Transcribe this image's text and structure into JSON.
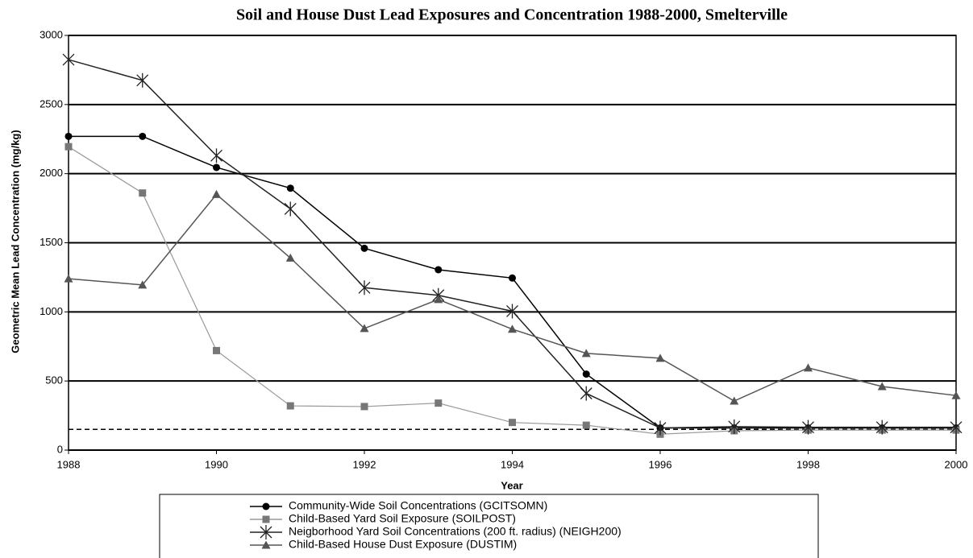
{
  "chart_data": {
    "type": "line",
    "title": "Soil and House Dust Lead Exposures and Concentration 1988-2000, Smelterville",
    "x_label": "Year",
    "y_label": "Geometric Mean Lead Concentration (mg/kg)",
    "x": [
      1988,
      1989,
      1990,
      1991,
      1992,
      1993,
      1994,
      1995,
      1996,
      1997,
      1998,
      1999,
      2000
    ],
    "xlim": [
      1988,
      2000
    ],
    "xticks": [
      1988,
      1990,
      1992,
      1994,
      1996,
      1998,
      2000
    ],
    "ylim": [
      0,
      3000
    ],
    "yticks": [
      0,
      500,
      1000,
      1500,
      2000,
      2500,
      3000
    ],
    "grid": true,
    "reference_line": 150,
    "series": [
      {
        "name": "Community-Wide Soil Concentrations (GCITSOMN)",
        "color": "#000000",
        "marker": "circle",
        "values": [
          2270,
          2270,
          2045,
          1895,
          1460,
          1305,
          1245,
          550,
          160,
          160,
          160,
          160,
          160
        ]
      },
      {
        "name": "Child-Based Yard Soil Exposure (SOILPOST)",
        "color": "#999999",
        "marker": "square",
        "values": [
          2195,
          1860,
          720,
          320,
          315,
          340,
          200,
          180,
          115,
          140,
          145,
          145,
          145
        ]
      },
      {
        "name": "Neigborhood Yard Soil Concentrations (200 ft. radius) (NEIGH200)",
        "color": "#222222",
        "marker": "star",
        "values": [
          2825,
          2675,
          2130,
          1745,
          1175,
          1120,
          1005,
          410,
          160,
          170,
          165,
          165,
          165
        ]
      },
      {
        "name": "Child-Based House Dust Exposure (DUSTIM)",
        "color": "#555555",
        "marker": "triangle",
        "values": [
          1240,
          1195,
          1850,
          1390,
          880,
          1090,
          875,
          700,
          665,
          355,
          595,
          460,
          395
        ]
      }
    ]
  }
}
